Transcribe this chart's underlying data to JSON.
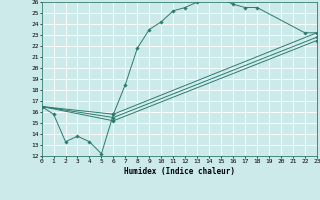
{
  "xlabel": "Humidex (Indice chaleur)",
  "xlim": [
    0,
    23
  ],
  "ylim": [
    12,
    26
  ],
  "xticks": [
    0,
    1,
    2,
    3,
    4,
    5,
    6,
    7,
    8,
    9,
    10,
    11,
    12,
    13,
    14,
    15,
    16,
    17,
    18,
    19,
    20,
    21,
    22,
    23
  ],
  "yticks": [
    12,
    13,
    14,
    15,
    16,
    17,
    18,
    19,
    20,
    21,
    22,
    23,
    24,
    25,
    26
  ],
  "bg_color": "#cceaea",
  "grid_color": "#ffffff",
  "line_color": "#2d7a6e",
  "lines": [
    {
      "x": [
        0,
        1,
        2,
        3,
        4,
        5,
        6,
        7,
        8,
        9,
        10,
        11,
        12,
        13,
        14,
        15,
        16,
        17,
        18,
        22,
        23
      ],
      "y": [
        16.5,
        15.8,
        13.3,
        13.8,
        13.3,
        12.2,
        15.8,
        18.5,
        21.8,
        23.5,
        24.2,
        25.2,
        25.5,
        26.0,
        26.2,
        26.3,
        25.8,
        25.5,
        25.5,
        23.2,
        23.2
      ]
    },
    {
      "x": [
        0,
        6,
        23
      ],
      "y": [
        16.5,
        15.8,
        23.2
      ]
    },
    {
      "x": [
        0,
        6,
        23
      ],
      "y": [
        16.5,
        15.5,
        22.8
      ]
    },
    {
      "x": [
        0,
        6,
        23
      ],
      "y": [
        16.5,
        15.2,
        22.5
      ]
    }
  ]
}
